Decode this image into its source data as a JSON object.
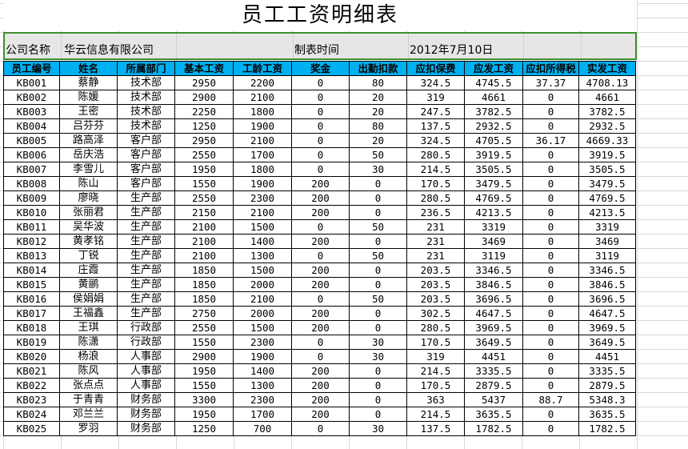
{
  "sheet": {
    "title": "员工工资明细表",
    "company_label": "公司名称",
    "company_value": "华云信息有限公司",
    "date_label": "制表时间",
    "date_value": "2012年7月10日",
    "columns": [
      "员工编号",
      "姓名",
      "所属部门",
      "基本工资",
      "工龄工资",
      "奖金",
      "出勤扣款",
      "应扣保费",
      "应发工资",
      "应扣所得税",
      "实发工资"
    ],
    "rows": [
      [
        "KB001",
        "蔡静",
        "技术部",
        "2950",
        "2200",
        "0",
        "80",
        "324.5",
        "4745.5",
        "37.37",
        "4708.13"
      ],
      [
        "KB002",
        "陈媛",
        "技术部",
        "2900",
        "2100",
        "0",
        "20",
        "319",
        "4661",
        "0",
        "4661"
      ],
      [
        "KB003",
        "王密",
        "技术部",
        "2250",
        "1800",
        "0",
        "20",
        "247.5",
        "3782.5",
        "0",
        "3782.5"
      ],
      [
        "KB004",
        "吕芬芬",
        "技术部",
        "1250",
        "1900",
        "0",
        "80",
        "137.5",
        "2932.5",
        "0",
        "2932.5"
      ],
      [
        "KB005",
        "路高泽",
        "客户部",
        "2950",
        "2100",
        "0",
        "20",
        "324.5",
        "4705.5",
        "36.17",
        "4669.33"
      ],
      [
        "KB006",
        "岳庆浩",
        "客户部",
        "2550",
        "1700",
        "0",
        "50",
        "280.5",
        "3919.5",
        "0",
        "3919.5"
      ],
      [
        "KB007",
        "李雪儿",
        "客户部",
        "1950",
        "1800",
        "0",
        "30",
        "214.5",
        "3505.5",
        "0",
        "3505.5"
      ],
      [
        "KB008",
        "陈山",
        "客户部",
        "1550",
        "1900",
        "200",
        "0",
        "170.5",
        "3479.5",
        "0",
        "3479.5"
      ],
      [
        "KB009",
        "廖晓",
        "生产部",
        "2550",
        "2300",
        "200",
        "0",
        "280.5",
        "4769.5",
        "0",
        "4769.5"
      ],
      [
        "KB010",
        "张丽君",
        "生产部",
        "2150",
        "2100",
        "200",
        "0",
        "236.5",
        "4213.5",
        "0",
        "4213.5"
      ],
      [
        "KB011",
        "吴华波",
        "生产部",
        "2100",
        "1500",
        "0",
        "50",
        "231",
        "3319",
        "0",
        "3319"
      ],
      [
        "KB012",
        "黄孝铭",
        "生产部",
        "2100",
        "1400",
        "200",
        "0",
        "231",
        "3469",
        "0",
        "3469"
      ],
      [
        "KB013",
        "丁锐",
        "生产部",
        "2100",
        "1300",
        "0",
        "50",
        "231",
        "3119",
        "0",
        "3119"
      ],
      [
        "KB014",
        "庄霞",
        "生产部",
        "1850",
        "1500",
        "200",
        "0",
        "203.5",
        "3346.5",
        "0",
        "3346.5"
      ],
      [
        "KB015",
        "黄鹂",
        "生产部",
        "1850",
        "2000",
        "200",
        "0",
        "203.5",
        "3846.5",
        "0",
        "3846.5"
      ],
      [
        "KB016",
        "侯娟娟",
        "生产部",
        "1850",
        "2100",
        "0",
        "50",
        "203.5",
        "3696.5",
        "0",
        "3696.5"
      ],
      [
        "KB017",
        "王福鑫",
        "生产部",
        "2750",
        "2000",
        "200",
        "0",
        "302.5",
        "4647.5",
        "0",
        "4647.5"
      ],
      [
        "KB018",
        "王琪",
        "行政部",
        "2550",
        "1500",
        "200",
        "0",
        "280.5",
        "3969.5",
        "0",
        "3969.5"
      ],
      [
        "KB019",
        "陈潇",
        "行政部",
        "1550",
        "2300",
        "0",
        "30",
        "170.5",
        "3649.5",
        "0",
        "3649.5"
      ],
      [
        "KB020",
        "杨浪",
        "人事部",
        "2900",
        "1900",
        "0",
        "30",
        "319",
        "4451",
        "0",
        "4451"
      ],
      [
        "KB021",
        "陈风",
        "人事部",
        "1950",
        "1400",
        "200",
        "0",
        "214.5",
        "3335.5",
        "0",
        "3335.5"
      ],
      [
        "KB022",
        "张点点",
        "人事部",
        "1550",
        "1300",
        "200",
        "0",
        "170.5",
        "2879.5",
        "0",
        "2879.5"
      ],
      [
        "KB023",
        "于青青",
        "财务部",
        "3300",
        "2300",
        "200",
        "0",
        "363",
        "5437",
        "88.7",
        "5348.3"
      ],
      [
        "KB024",
        "邓兰兰",
        "财务部",
        "1950",
        "1700",
        "200",
        "0",
        "214.5",
        "3635.5",
        "0",
        "3635.5"
      ],
      [
        "KB025",
        "罗羽",
        "财务部",
        "1250",
        "700",
        "0",
        "30",
        "137.5",
        "1782.5",
        "0",
        "1782.5"
      ]
    ]
  },
  "colors": {
    "header_fill": "#00b0f0",
    "info_row_fill": "#e6e6e6",
    "selection_border": "#3f8f2e"
  }
}
